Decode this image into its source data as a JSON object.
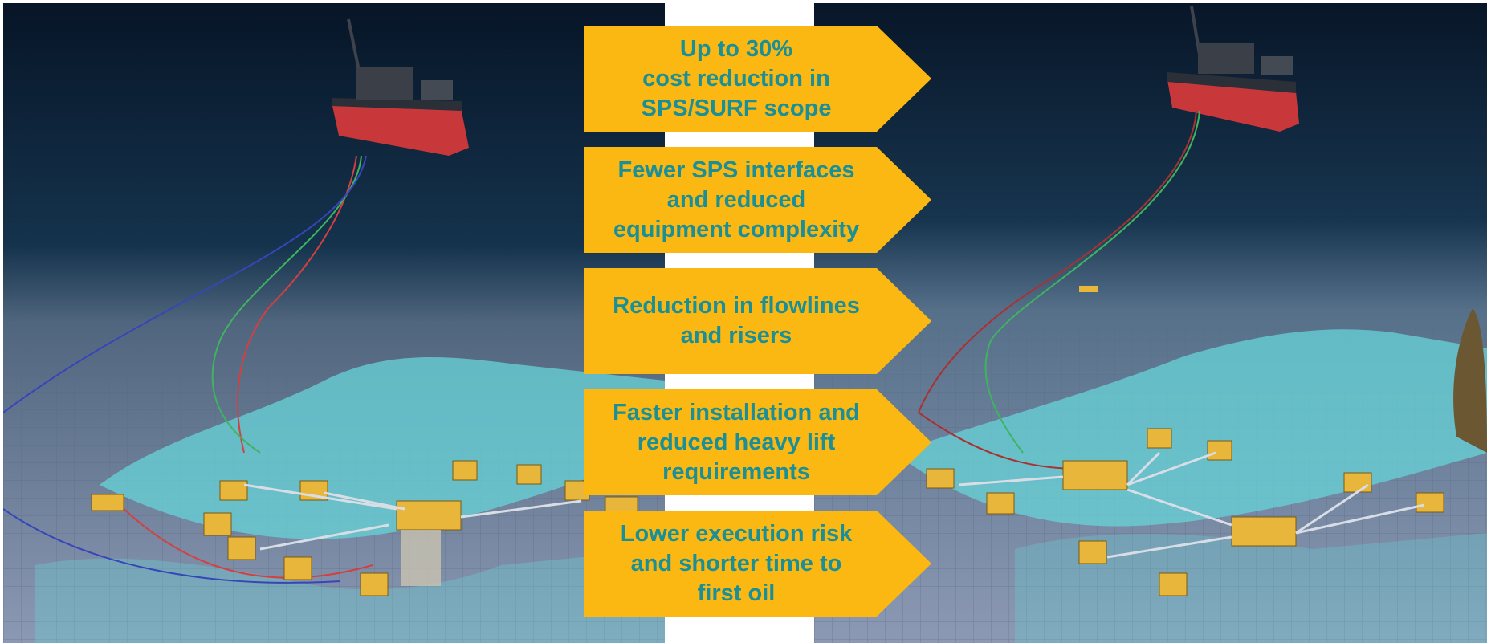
{
  "benefits": [
    {
      "text": "Up to 30%\ncost reduction in\nSPS/SURF scope"
    },
    {
      "text": "Fewer SPS interfaces\nand reduced\nequipment complexity"
    },
    {
      "text": "Reduction in flowlines\nand risers"
    },
    {
      "text": "Faster installation and\nreduced heavy lift\nrequirements"
    },
    {
      "text": "Lower execution risk\nand shorter time to\nfirst oil"
    }
  ],
  "colors": {
    "arrow_fill": "#fbb812",
    "arrow_text": "#1b8f97",
    "ocean_deep": "#0b1a2c",
    "seabed": "#8c99b4",
    "hull_red": "#c8383a",
    "equipment_yellow": "#e8b63a"
  }
}
